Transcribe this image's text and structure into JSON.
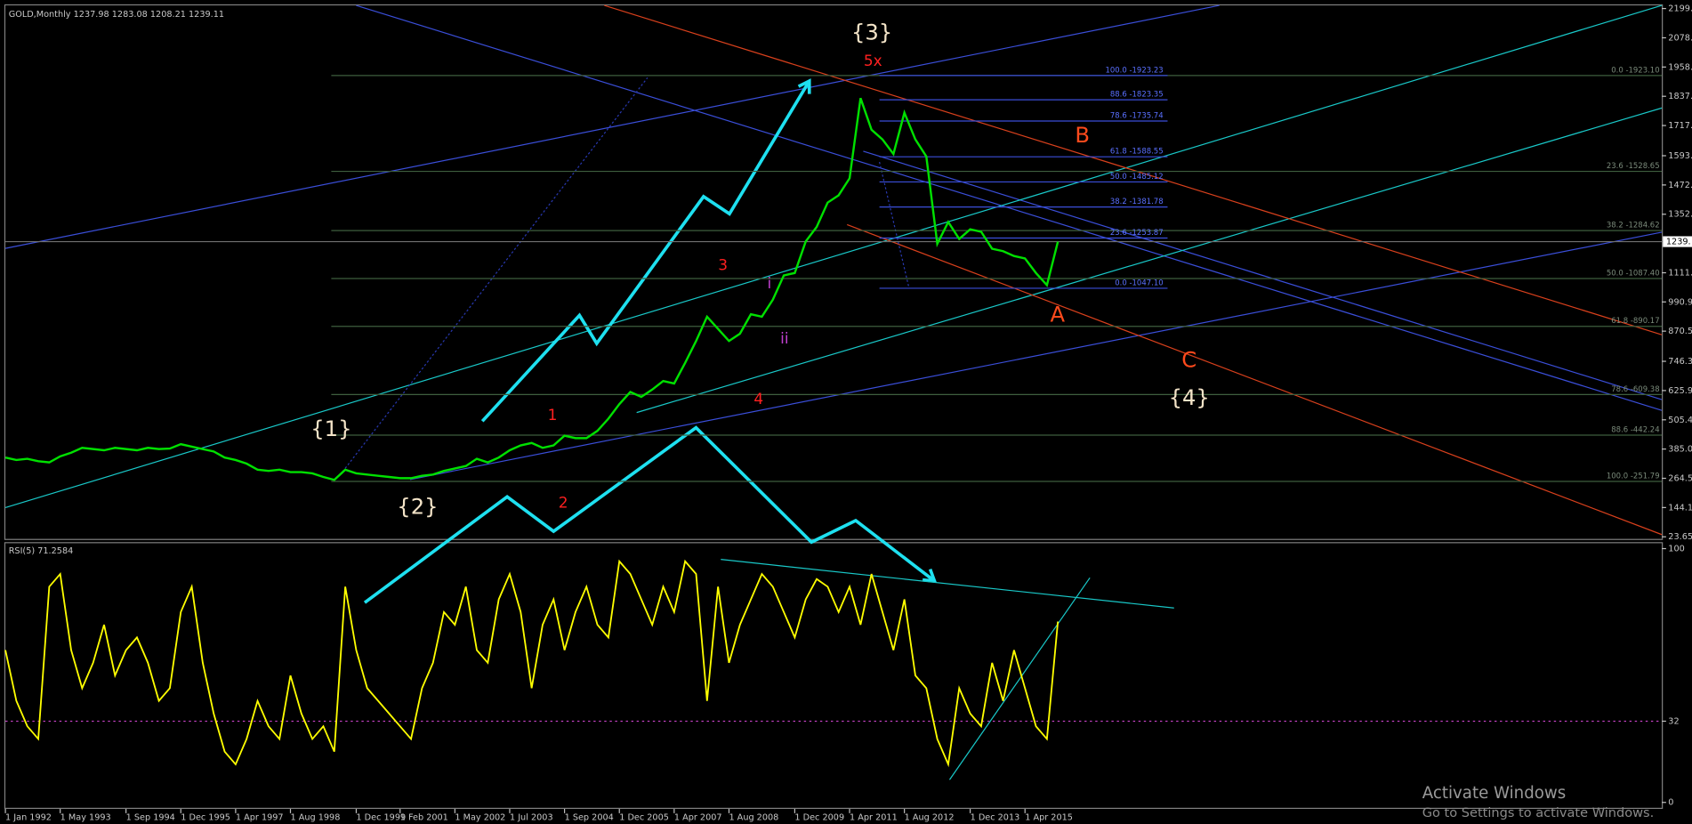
{
  "chart_data": [
    {
      "type": "line",
      "title": "GOLD,Monthly  1237.98 1283.08 1208.21 1239.11",
      "color": "#00e000",
      "categories": [
        "1 Jan 1992",
        null,
        null,
        null,
        null,
        "1 May 1993",
        null,
        null,
        null,
        null,
        null,
        "1 Sep 1994",
        null,
        null,
        null,
        null,
        "1 Dec 1995",
        null,
        null,
        null,
        null,
        "1 Apr 1997",
        null,
        null,
        null,
        null,
        "1 Aug 1998",
        null,
        null,
        null,
        null,
        null,
        "1 Dec 1999",
        null,
        null,
        null,
        "1 Feb 2001",
        null,
        null,
        null,
        null,
        "1 May 2002",
        null,
        null,
        null,
        null,
        "1 Jul 2003",
        null,
        null,
        null,
        null,
        "1 Sep 2004",
        null,
        null,
        null,
        null,
        "1 Dec 2005",
        null,
        null,
        null,
        null,
        "1 Apr 2007",
        null,
        null,
        null,
        null,
        "1 Aug 2008",
        null,
        null,
        null,
        null,
        null,
        "1 Dec 2009",
        null,
        null,
        null,
        null,
        "1 Apr 2011",
        null,
        null,
        null,
        null,
        "1 Aug 2012",
        null,
        null,
        null,
        null,
        null,
        "1 Dec 2013",
        null,
        null,
        null,
        null,
        "1 Apr 2015",
        null,
        null,
        null
      ],
      "values": [
        350,
        340,
        345,
        335,
        330,
        355,
        370,
        390,
        385,
        380,
        390,
        385,
        380,
        390,
        385,
        387,
        405,
        395,
        385,
        375,
        350,
        340,
        325,
        300,
        295,
        300,
        290,
        290,
        285,
        270,
        258,
        300,
        285,
        280,
        275,
        270,
        265,
        265,
        275,
        280,
        295,
        305,
        315,
        345,
        330,
        350,
        380,
        400,
        410,
        390,
        400,
        440,
        430,
        430,
        460,
        510,
        570,
        620,
        600,
        630,
        665,
        655,
        740,
        830,
        930,
        880,
        830,
        860,
        940,
        930,
        1000,
        1100,
        1110,
        1240,
        1300,
        1400,
        1430,
        1500,
        1830,
        1700,
        1660,
        1600,
        1770,
        1660,
        1590,
        1230,
        1320,
        1250,
        1290,
        1280,
        1210,
        1200,
        1180,
        1170,
        1110,
        1060,
        1239.11
      ],
      "ylim": [
        15,
        2212
      ],
      "yticks": [
        2199.1,
        {
          "value": 2078.6,
          "label": "2078."
        },
        {
          "value": 1958.2,
          "label": "1958."
        },
        {
          "value": 1837.7,
          "label": "1837."
        },
        {
          "value": 1717.3,
          "label": "1717."
        },
        {
          "value": 1593,
          "label": "1593."
        },
        {
          "value": 1472.5,
          "label": "1472."
        },
        {
          "value": 1352,
          "label": "1352."
        },
        {
          "value": 1111,
          "label": "1111."
        },
        990.9,
        870.5,
        746.3,
        625.9,
        505.4,
        {
          "value": 385,
          "label": "385.0"
        },
        264.5,
        144.1,
        23.65
      ],
      "last_price": {
        "value": 1239.11,
        "label": "1239."
      },
      "fib_left": [
        {
          "value": 1923.23,
          "label": "100.0 -1923.23"
        },
        {
          "value": 1823.35,
          "label": "88.6 -1823.35"
        },
        {
          "value": 1735.74,
          "label": "78.6 -1735.74"
        },
        {
          "value": 1588.55,
          "label": "61.8 -1588.55"
        },
        {
          "value": 1485.12,
          "label": "50.0 -1485.12"
        },
        {
          "value": 1381.78,
          "label": "38.2 -1381.78"
        },
        {
          "value": 1253.87,
          "label": "23.6 -1253.87"
        },
        {
          "value": 1047.1,
          "label": "0.0 -1047.10"
        }
      ],
      "fib_right": [
        {
          "value": 1923.1,
          "label": "0.0 -1923.10"
        },
        {
          "value": 1528.65,
          "label": "23.6 -1528.65"
        },
        {
          "value": 1284.62,
          "label": "38.2 -1284.62"
        },
        {
          "value": 1087.4,
          "label": "50.0 -1087.40"
        },
        {
          "value": 890.17,
          "label": "61.8 -890.17"
        },
        {
          "value": 609.38,
          "label": "78.6 -609.38"
        },
        {
          "value": 442.24,
          "label": "88.6 -442.24"
        },
        {
          "value": 251.79,
          "label": "100.0 -251.79"
        }
      ],
      "annotations": [
        "{3}",
        "5x",
        "B",
        "A",
        "C",
        "{4}",
        "{1}",
        "{2}",
        "1",
        "2",
        "3",
        "4",
        "i",
        "ii"
      ]
    },
    {
      "type": "line",
      "title": "RSI(5) 71.2584",
      "color": "#ffff00",
      "values": [
        60,
        40,
        30,
        25,
        85,
        90,
        60,
        45,
        55,
        70,
        50,
        60,
        65,
        55,
        40,
        45,
        75,
        85,
        55,
        35,
        20,
        15,
        25,
        40,
        30,
        25,
        50,
        35,
        25,
        30,
        20,
        85,
        60,
        45,
        40,
        35,
        30,
        25,
        45,
        55,
        75,
        70,
        85,
        60,
        55,
        80,
        90,
        75,
        45,
        70,
        80,
        60,
        75,
        85,
        70,
        65,
        95,
        90,
        80,
        70,
        85,
        75,
        95,
        90,
        40,
        85,
        55,
        70,
        80,
        90,
        85,
        75,
        65,
        80,
        88,
        85,
        75,
        85,
        70,
        90,
        75,
        60,
        80,
        50,
        45,
        25,
        15,
        45,
        35,
        30,
        55,
        40,
        60,
        45,
        30,
        25,
        71.2584
      ],
      "ylim": [
        0,
        100
      ],
      "yticks": [
        0,
        32,
        100
      ]
    }
  ],
  "watermark": {
    "title": "Activate Windows",
    "subtitle": "Go to Settings to activate Windows."
  }
}
